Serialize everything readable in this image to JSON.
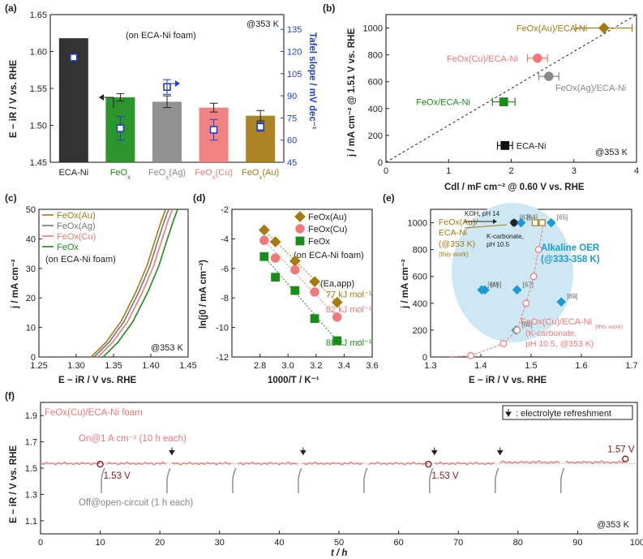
{
  "chart_data": [
    {
      "panel": "(a)",
      "type": "bar",
      "note": "(on ECA-Ni foam)",
      "temp": "@353 K",
      "categories": [
        "ECA-Ni",
        "FeOx",
        "FeOx(Ag)",
        "FeOx(Cu)",
        "FeOx(Au)"
      ],
      "category_colors": [
        "#222222",
        "#1a8c1a",
        "#888888",
        "#f07878",
        "#a57a10"
      ],
      "values": [
        1.618,
        1.538,
        1.532,
        1.524,
        1.513
      ],
      "errors": [
        0,
        0.005,
        0.008,
        0.006,
        0.007
      ],
      "tafel_values": [
        116,
        68,
        96,
        67,
        69
      ],
      "tafel_errors": [
        0,
        8,
        5,
        7,
        3
      ],
      "ylabel": "E − iR / V vs. RHE",
      "ylim": [
        1.45,
        1.65
      ],
      "yticks": [
        "1.45",
        "1.50",
        "1.55",
        "1.60",
        "1.65"
      ],
      "y2label": "Tafel slope / mV dec⁻¹",
      "y2lim": [
        45,
        145
      ],
      "y2ticks": [
        "45",
        "60",
        "75",
        "90",
        "105",
        "120",
        "135"
      ]
    },
    {
      "panel": "(b)",
      "type": "scatter",
      "temp": "@353 K",
      "xlabel": "Cdl / mF cm⁻² @ 0.60 V vs. RHE",
      "ylabel": "j / mA cm⁻² @ 1.51 V vs. RHE",
      "xlim": [
        0,
        4
      ],
      "ylim": [
        0,
        1100
      ],
      "xticks": [
        "0",
        "1",
        "2",
        "3",
        "4"
      ],
      "yticks": [
        "0",
        "200",
        "400",
        "600",
        "800",
        "1000"
      ],
      "points": [
        {
          "name": "FeOx(Au)/ECA-Ni",
          "x": 3.48,
          "y": 1000,
          "xerr": 0.45,
          "color": "#a57a10",
          "marker": "diamond"
        },
        {
          "name": "FeOx(Cu)/ECA-Ni",
          "x": 2.42,
          "y": 775,
          "xerr": 0.16,
          "color": "#f07878",
          "marker": "circle"
        },
        {
          "name": "FeOx(Ag)/ECA-Ni",
          "x": 2.6,
          "y": 640,
          "xerr": 0.16,
          "color": "#888888",
          "marker": "circle"
        },
        {
          "name": "FeOx/ECA-Ni",
          "x": 1.88,
          "y": 450,
          "xerr": 0.18,
          "color": "#1a8c1a",
          "marker": "square"
        },
        {
          "name": "ECA-Ni",
          "x": 1.9,
          "y": 125,
          "xerr": 0.12,
          "color": "#111111",
          "marker": "square"
        }
      ]
    },
    {
      "panel": "(c)",
      "type": "line",
      "temp": "@353 K",
      "xlabel": "E − iR / V vs. RHE",
      "ylabel": "j / mA cm⁻²",
      "xlim": [
        1.25,
        1.45
      ],
      "ylim": [
        0,
        50
      ],
      "xticks": [
        "1.25",
        "1.30",
        "1.35",
        "1.40",
        "1.45"
      ],
      "yticks": [
        "0",
        "10",
        "20",
        "30",
        "40",
        "50"
      ],
      "legend_note": "(on ECA-Ni foam)",
      "series": [
        {
          "name": "FeOx(Au)",
          "color": "#a57a10",
          "x": [
            1.32,
            1.34,
            1.36,
            1.38,
            1.395,
            1.405,
            1.414,
            1.42
          ],
          "y": [
            0,
            5,
            12,
            22,
            31,
            39,
            46,
            50
          ]
        },
        {
          "name": "FeOx(Ag)",
          "color": "#777777",
          "x": [
            1.324,
            1.344,
            1.364,
            1.384,
            1.399,
            1.409,
            1.418,
            1.424
          ],
          "y": [
            0,
            5,
            12,
            22,
            31,
            39,
            46,
            50
          ]
        },
        {
          "name": "FeOx(Cu)",
          "color": "#f07878",
          "x": [
            1.329,
            1.349,
            1.369,
            1.389,
            1.404,
            1.414,
            1.423,
            1.429
          ],
          "y": [
            0,
            5,
            12,
            22,
            31,
            39,
            46,
            50
          ]
        },
        {
          "name": "FeOx",
          "color": "#1a8c1a",
          "x": [
            1.336,
            1.356,
            1.376,
            1.396,
            1.411,
            1.421,
            1.43,
            1.436
          ],
          "y": [
            0,
            5,
            12,
            22,
            31,
            39,
            46,
            50
          ]
        }
      ]
    },
    {
      "panel": "(d)",
      "type": "scatter",
      "xlabel": "1000/T / K⁻¹",
      "ylabel": "ln(j0 / mA cm⁻²)",
      "xlim": [
        2.6,
        3.6
      ],
      "ylim": [
        -12,
        -2
      ],
      "xticks": [
        "2.8",
        "3.0",
        "3.2",
        "3.4",
        "3.6"
      ],
      "yticks": [
        "-12",
        "-10",
        "-8",
        "-6",
        "-4",
        "-2"
      ],
      "legend_note": "(on ECA-Ni foam)",
      "ea_label": "(Ea,app)",
      "series": [
        {
          "name": "FeOx(Au)",
          "color": "#a57a10",
          "marker": "diamond",
          "ea": "77 kJ mol⁻¹",
          "x": [
            2.83,
            2.91,
            3.05,
            3.19,
            3.35
          ],
          "y": [
            -3.4,
            -4.2,
            -5.5,
            -6.9,
            -8.3
          ]
        },
        {
          "name": "FeOx(Cu)",
          "color": "#f07878",
          "marker": "circle",
          "ea": "82 kJ mol⁻¹",
          "x": [
            2.83,
            2.91,
            3.05,
            3.19,
            3.35
          ],
          "y": [
            -4.1,
            -5.3,
            -6.1,
            -7.6,
            -9.3
          ]
        },
        {
          "name": "FeOx",
          "color": "#1a8c1a",
          "marker": "square",
          "ea": "88 kJ mol⁻¹",
          "x": [
            2.83,
            2.91,
            3.05,
            3.19,
            3.35
          ],
          "y": [
            -5.2,
            -6.6,
            -7.5,
            -9.4,
            -10.9
          ]
        }
      ]
    },
    {
      "panel": "(e)",
      "type": "scatter",
      "xlabel": "E − iR / V vs. RHE",
      "ylabel": "j / mA cm⁻²",
      "xlim": [
        1.3,
        1.7
      ],
      "ylim": [
        0,
        1100
      ],
      "xticks": [
        "1.3",
        "1.4",
        "1.5",
        "1.6",
        "1.7"
      ],
      "yticks": [
        "0",
        "200",
        "400",
        "600",
        "800",
        "1000"
      ],
      "region_label": "Alkaline OER",
      "region_sublabel": "(@333-358 K)",
      "lit_points": [
        {
          "ref": "[63]",
          "x": 1.466,
          "y": 1000
        },
        {
          "ref": "[64]",
          "x": 1.48,
          "y": 1000
        },
        {
          "ref": "[65]",
          "x": 1.54,
          "y": 1000
        },
        {
          "ref": "[66]",
          "x": 1.402,
          "y": 500
        },
        {
          "ref": "[19]",
          "x": 1.408,
          "y": 500
        },
        {
          "ref": "[67]",
          "x": 1.472,
          "y": 500
        },
        {
          "ref": "[69]",
          "x": 1.56,
          "y": 410
        },
        {
          "ref": "[68]",
          "x": 1.47,
          "y": 200
        }
      ],
      "au_points": {
        "label1": "FeOx(Au)/",
        "label2": "ECA-Ni",
        "label3": "(@353 K)",
        "label4": "(this work)",
        "koh": "KOH, pH 14",
        "kcarb": "K-carbonate,",
        "kcarb_ph": "pH 10.5",
        "x": [
          1.466,
          1.508,
          1.522
        ],
        "y": [
          1000,
          1000,
          1000
        ]
      },
      "cu_series": {
        "label": "FeOx(Cu)/ECA-Ni",
        "this_work": "(this work)",
        "cond1": "(K-carbonate,",
        "cond2": "pH 10.5, @353 K)",
        "x": [
          1.38,
          1.445,
          1.472,
          1.49,
          1.505,
          1.515
        ],
        "y": [
          10,
          100,
          200,
          400,
          600,
          800
        ]
      }
    },
    {
      "panel": "(f)",
      "type": "line",
      "title": "FeOx(Cu)/ECA-Ni foam",
      "on_label": "On@1 A cm⁻² (10 h each)",
      "off_label": "Off@open-circuit (1 h each)",
      "legend": ": electrolyte refreshment",
      "temp": "@353 K",
      "xlabel": "t / h",
      "ylabel": "E − iR / V vs. RHE",
      "xlim": [
        0,
        100
      ],
      "ylim": [
        1.0,
        2.0
      ],
      "xticks": [
        "0",
        "10",
        "20",
        "30",
        "40",
        "50",
        "60",
        "70",
        "80",
        "90",
        "100"
      ],
      "yticks": [
        "1.1",
        "1.3",
        "1.5",
        "1.7",
        "1.9"
      ],
      "segments_start": [
        0,
        11,
        22,
        33,
        44,
        55,
        66,
        77,
        88
      ],
      "segment_hours": 10,
      "on_voltage": 1.535,
      "ocv_voltage": 1.31,
      "refresh_times": [
        22,
        44,
        66,
        77
      ],
      "marked_points": [
        {
          "label": "1.53 V",
          "x": 10,
          "y": 1.53
        },
        {
          "label": "1.53 V",
          "x": 65,
          "y": 1.53
        },
        {
          "label": "1.57 V",
          "x": 98,
          "y": 1.57
        }
      ]
    }
  ]
}
